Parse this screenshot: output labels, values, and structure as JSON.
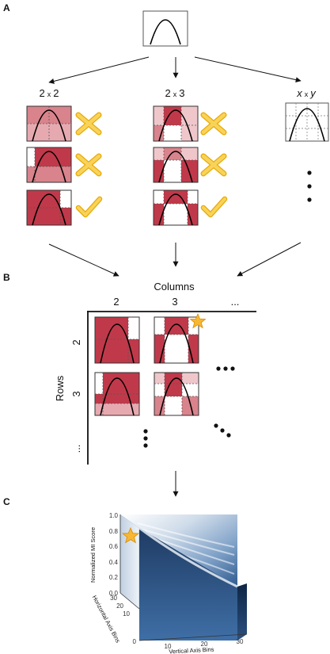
{
  "panels": {
    "a": "A",
    "b": "B",
    "c": "C"
  },
  "panel_a": {
    "grid_labels": {
      "g1": {
        "n": "2",
        "sep": "x",
        "m": "2"
      },
      "g2": {
        "n": "2",
        "sep": "x",
        "m": "3"
      },
      "g3": {
        "n": "x",
        "sep": "x",
        "m": "y"
      }
    },
    "marks": [
      "cross",
      "cross",
      "check",
      "cross",
      "cross",
      "check"
    ]
  },
  "panel_b": {
    "columns_title": "Columns",
    "rows_title": "Rows",
    "col_labels": [
      "2",
      "3",
      "..."
    ],
    "row_labels": [
      "2",
      "3",
      "..."
    ]
  },
  "panel_c": {
    "zlabel": "Normalized MI Score",
    "xlabel": "Vertical Axis Bins",
    "ylabel": "Horizontal Axis Bins",
    "zticks": [
      "1.0",
      "0.8",
      "0.6",
      "0.4",
      "0.2",
      "0.0"
    ],
    "xticks": [
      "0",
      "10",
      "20",
      "30"
    ],
    "yticks": [
      "0",
      "10",
      "20",
      "30"
    ]
  },
  "colors": {
    "dark": "#c0394a",
    "mid": "#d9838c",
    "light": "#efc7cb",
    "star": "#f7b733",
    "check": "#f4c430"
  }
}
